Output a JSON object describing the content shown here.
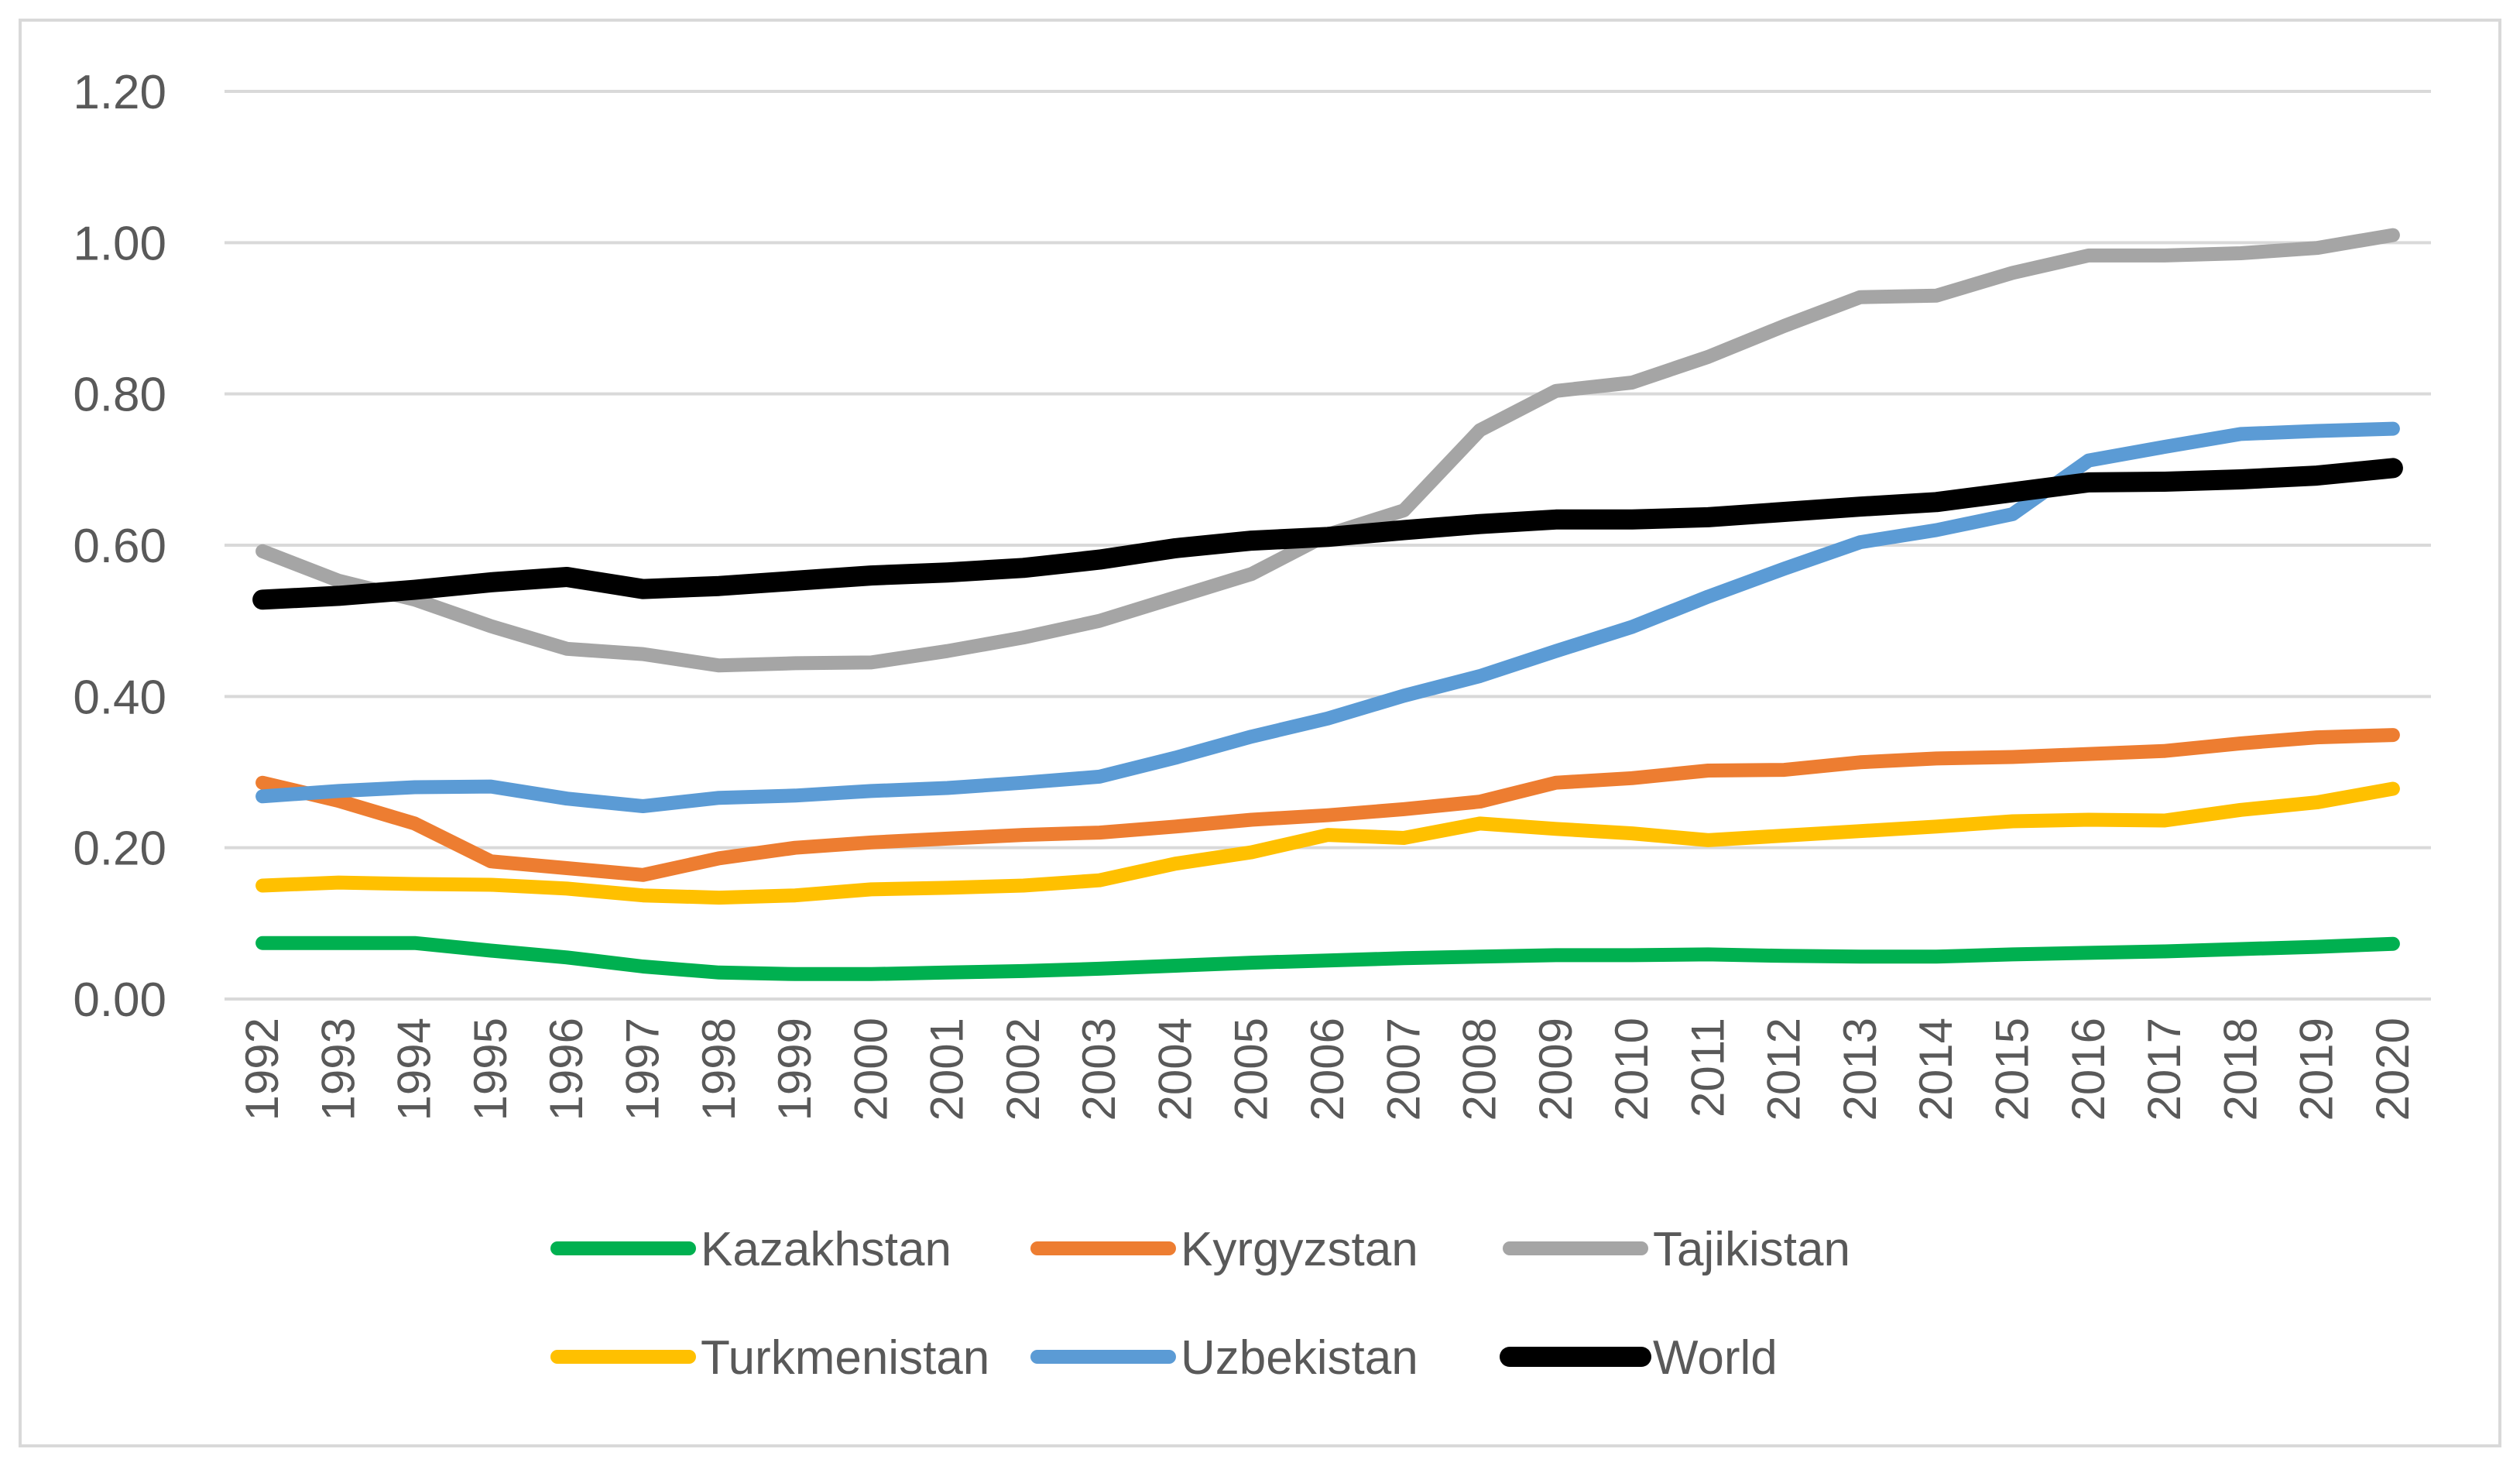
{
  "chart_data": {
    "type": "line",
    "title": "",
    "xlabel": "",
    "ylabel": "",
    "ylim": [
      0,
      1.2
    ],
    "yticks": [
      "0.00",
      "0.20",
      "0.40",
      "0.60",
      "0.80",
      "1.00",
      "1.20"
    ],
    "grid": true,
    "legend_position": "bottom",
    "categories": [
      "1992",
      "1993",
      "1994",
      "1995",
      "1996",
      "1997",
      "1998",
      "1999",
      "2000",
      "2001",
      "2002",
      "2003",
      "2004",
      "2005",
      "2006",
      "2007",
      "2008",
      "2009",
      "2010",
      "2011",
      "2012",
      "2013",
      "2014",
      "2015",
      "2016",
      "2017",
      "2018",
      "2019",
      "2020"
    ],
    "series": [
      {
        "name": "Kazakhstan",
        "color": "#00B050",
        "width": 18,
        "values": [
          0.074,
          0.074,
          0.074,
          0.064,
          0.055,
          0.043,
          0.035,
          0.033,
          0.033,
          0.035,
          0.037,
          0.04,
          0.044,
          0.048,
          0.051,
          0.054,
          0.056,
          0.058,
          0.058,
          0.059,
          0.057,
          0.056,
          0.056,
          0.059,
          0.061,
          0.063,
          0.066,
          0.069,
          0.073
        ]
      },
      {
        "name": "Kyrgyzstan",
        "color": "#ED7D31",
        "width": 18,
        "values": [
          0.286,
          0.262,
          0.232,
          0.182,
          0.173,
          0.164,
          0.186,
          0.2,
          0.207,
          0.212,
          0.217,
          0.22,
          0.228,
          0.237,
          0.243,
          0.251,
          0.261,
          0.286,
          0.292,
          0.302,
          0.303,
          0.313,
          0.318,
          0.32,
          0.324,
          0.328,
          0.338,
          0.346,
          0.349
        ]
      },
      {
        "name": "Tajikistan",
        "color": "#A5A5A5",
        "width": 18,
        "values": [
          0.592,
          0.553,
          0.528,
          0.493,
          0.463,
          0.456,
          0.441,
          0.444,
          0.445,
          0.46,
          0.478,
          0.5,
          0.531,
          0.562,
          0.614,
          0.646,
          0.752,
          0.804,
          0.815,
          0.849,
          0.89,
          0.928,
          0.93,
          0.96,
          0.983,
          0.983,
          0.986,
          0.993,
          1.01
        ]
      },
      {
        "name": "Turkmenistan",
        "color": "#FFC000",
        "width": 18,
        "values": [
          0.15,
          0.154,
          0.152,
          0.151,
          0.146,
          0.137,
          0.134,
          0.137,
          0.145,
          0.147,
          0.15,
          0.157,
          0.179,
          0.194,
          0.217,
          0.213,
          0.232,
          0.225,
          0.219,
          0.21,
          0.216,
          0.222,
          0.228,
          0.235,
          0.237,
          0.236,
          0.25,
          0.26,
          0.278
        ]
      },
      {
        "name": "Uzbekistan",
        "color": "#5B9BD5",
        "width": 18,
        "values": [
          0.268,
          0.275,
          0.28,
          0.281,
          0.265,
          0.255,
          0.266,
          0.269,
          0.275,
          0.279,
          0.286,
          0.294,
          0.319,
          0.347,
          0.371,
          0.401,
          0.427,
          0.46,
          0.492,
          0.532,
          0.569,
          0.604,
          0.62,
          0.641,
          0.712,
          0.73,
          0.747,
          0.751,
          0.754
        ]
      },
      {
        "name": "World",
        "color": "#000000",
        "width": 26,
        "values": [
          0.528,
          0.533,
          0.541,
          0.551,
          0.558,
          0.542,
          0.546,
          0.553,
          0.56,
          0.564,
          0.57,
          0.581,
          0.596,
          0.606,
          0.611,
          0.62,
          0.628,
          0.634,
          0.634,
          0.637,
          0.644,
          0.651,
          0.657,
          0.67,
          0.683,
          0.684,
          0.687,
          0.692,
          0.702
        ]
      }
    ]
  }
}
